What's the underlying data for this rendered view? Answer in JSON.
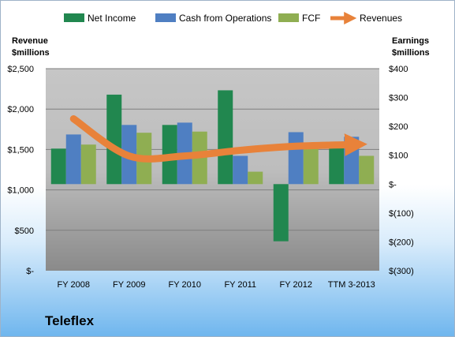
{
  "chart_data": {
    "type": "bar",
    "categories": [
      "FY 2008",
      "FY 2009",
      "FY 2010",
      "FY 2011",
      "FY 2012",
      "TTM 3-2013"
    ],
    "left_axis": {
      "title_line1": "Revenue",
      "title_line2": "$millions",
      "ylim": [
        0,
        2500
      ],
      "ticks": [
        0,
        500,
        1000,
        1500,
        2000,
        2500
      ],
      "tick_labels": [
        "$-",
        "$500",
        "$1,000",
        "$1,500",
        "$2,000",
        "$2,500"
      ]
    },
    "right_axis": {
      "title_line1": "Earnings",
      "title_line2": "$millions",
      "ylim": [
        -300,
        400
      ],
      "ticks": [
        -300,
        -200,
        -100,
        0,
        100,
        200,
        300,
        400
      ],
      "tick_labels": [
        "$(300)",
        "$(200)",
        "$(100)",
        "$-",
        "$100",
        "$200",
        "$300",
        "$400"
      ]
    },
    "series": [
      {
        "name": "Net Income",
        "kind": "bar",
        "axis": "right",
        "color": "#21874f",
        "values": [
          123,
          310,
          205,
          325,
          -198,
          128
        ]
      },
      {
        "name": "Cash from Operations",
        "kind": "bar",
        "axis": "right",
        "color": "#4f7fc2",
        "values": [
          172,
          205,
          213,
          98,
          180,
          164
        ]
      },
      {
        "name": "FCF",
        "kind": "bar",
        "axis": "right",
        "color": "#8fae52",
        "values": [
          137,
          178,
          182,
          43,
          131,
          98
        ]
      },
      {
        "name": "Revenues",
        "kind": "line",
        "axis": "left",
        "color": "#e8823a",
        "values": [
          1880,
          1420,
          1420,
          1490,
          1540,
          1560
        ]
      }
    ],
    "grid": true,
    "legend_position": "top"
  },
  "footer": {
    "company": "Teleflex"
  }
}
